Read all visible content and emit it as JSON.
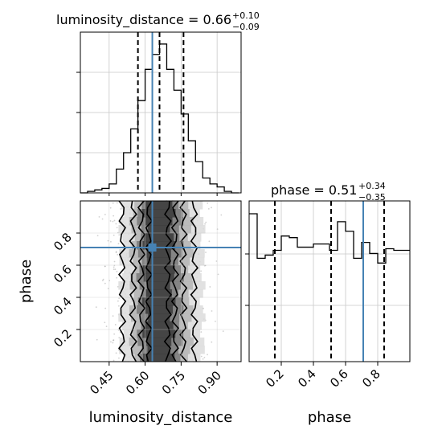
{
  "chart_data": {
    "type": "corner",
    "parameters": [
      "luminosity_distance",
      "phase"
    ],
    "truth": {
      "luminosity_distance": 0.63,
      "phase": 0.71
    },
    "colors": {
      "truth": "#4682b4",
      "hist": "#000000",
      "grid": "#c8c8c8",
      "scatter": "#9a9a9a"
    },
    "grid": true,
    "luminosity_distance": {
      "title_prefix": "luminosity_distance = 0.66",
      "title_plus": "+0.10",
      "title_minus": "−0.09",
      "axis_label": "luminosity_distance",
      "range": [
        0.33,
        1.0
      ],
      "tick_values": [
        0.45,
        0.6,
        0.75,
        0.9
      ],
      "tick_labels": [
        "0.45",
        "0.60",
        "0.75",
        "0.90"
      ],
      "quantiles": [
        0.57,
        0.66,
        0.76
      ],
      "bin_edges": [
        0.33,
        0.36,
        0.39,
        0.42,
        0.45,
        0.48,
        0.51,
        0.54,
        0.57,
        0.6,
        0.63,
        0.66,
        0.69,
        0.72,
        0.75,
        0.78,
        0.81,
        0.84,
        0.87,
        0.9,
        0.93,
        0.96,
        0.99
      ],
      "counts": [
        0,
        1,
        2,
        3,
        6,
        16,
        27,
        43,
        62,
        83,
        93,
        100,
        83,
        69,
        53,
        35,
        21,
        10,
        6,
        4,
        1,
        0
      ]
    },
    "phase": {
      "title_prefix": "phase = 0.51",
      "title_plus": "+0.34",
      "title_minus": "−0.35",
      "axis_label": "phase",
      "range": [
        0.0,
        1.0
      ],
      "tick_values": [
        0.2,
        0.4,
        0.6,
        0.8
      ],
      "tick_labels": [
        "0.2",
        "0.4",
        "0.6",
        "0.8"
      ],
      "quantiles": [
        0.16,
        0.51,
        0.84
      ],
      "bin_edges": [
        0.0,
        0.05,
        0.1,
        0.15,
        0.2,
        0.25,
        0.3,
        0.35,
        0.4,
        0.45,
        0.5,
        0.55,
        0.6,
        0.65,
        0.7,
        0.75,
        0.8,
        0.85,
        0.9,
        0.95,
        1.0
      ],
      "counts": [
        93,
        65,
        67,
        70,
        79,
        78,
        72,
        72,
        74,
        74,
        70,
        88,
        82,
        65,
        75,
        68,
        62,
        71,
        70,
        70
      ]
    }
  }
}
